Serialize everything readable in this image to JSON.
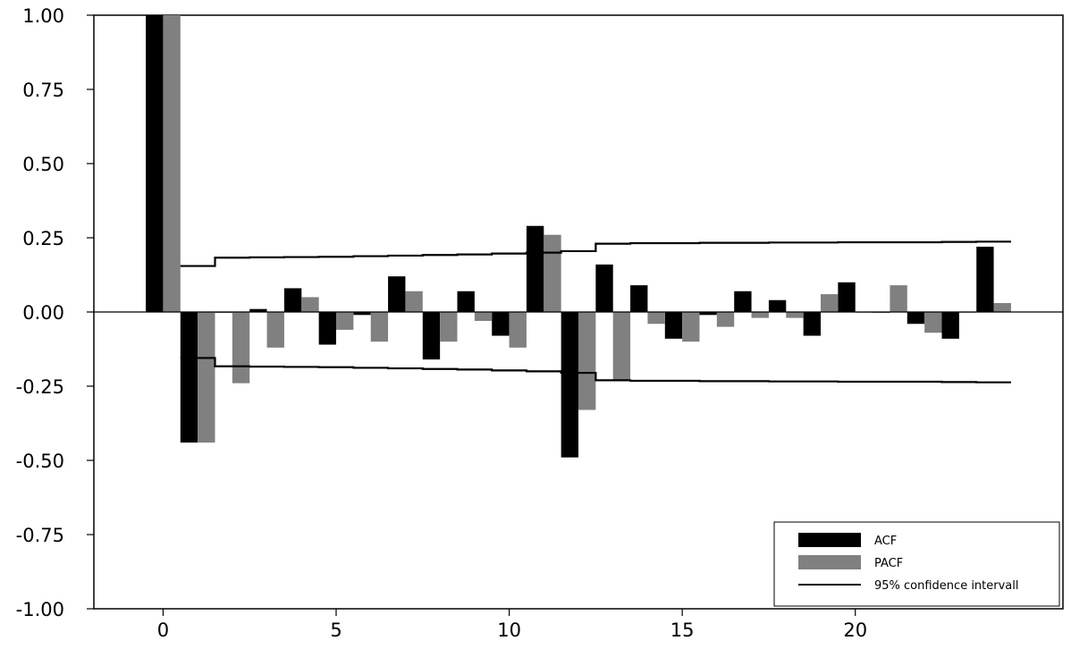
{
  "chart_data": {
    "type": "bar",
    "title": "",
    "xlabel": "",
    "ylabel": "",
    "ylim": [
      -1.0,
      1.0
    ],
    "xlim": [
      -2,
      26
    ],
    "y_ticks": [
      "1.00",
      "0.75",
      "0.50",
      "0.25",
      "0.00",
      "-0.25",
      "-0.50",
      "-0.75",
      "-1.00"
    ],
    "y_tick_values": [
      1.0,
      0.75,
      0.5,
      0.25,
      0.0,
      -0.25,
      -0.5,
      -0.75,
      -1.0
    ],
    "x_ticks": [
      "0",
      "5",
      "10",
      "15",
      "20"
    ],
    "x_tick_values": [
      0,
      5,
      10,
      15,
      20
    ],
    "lags": [
      0,
      1,
      2,
      3,
      4,
      5,
      6,
      7,
      8,
      9,
      10,
      11,
      12,
      13,
      14,
      15,
      16,
      17,
      18,
      19,
      20,
      21,
      22,
      23,
      24
    ],
    "series": [
      {
        "name": "ACF",
        "color": "#000000",
        "values": [
          1.0,
          -0.44,
          0.0,
          0.01,
          0.08,
          -0.11,
          -0.01,
          0.12,
          -0.16,
          0.07,
          -0.08,
          0.29,
          -0.49,
          0.16,
          0.09,
          -0.09,
          -0.01,
          0.07,
          0.04,
          -0.08,
          0.1,
          0.0,
          -0.04,
          -0.09,
          0.22
        ]
      },
      {
        "name": "PACF",
        "color": "#808080",
        "values": [
          1.0,
          -0.44,
          -0.24,
          -0.12,
          0.05,
          -0.06,
          -0.1,
          0.07,
          -0.1,
          -0.03,
          -0.12,
          0.26,
          -0.33,
          -0.23,
          -0.04,
          -0.1,
          -0.05,
          -0.02,
          -0.02,
          0.06,
          0.0,
          0.09,
          -0.07,
          0.0,
          0.03
        ]
      }
    ],
    "confidence_interval": {
      "name": "95% confidence intervall",
      "color": "#000000",
      "values": [
        0.155,
        0.183,
        0.184,
        0.185,
        0.186,
        0.188,
        0.19,
        0.192,
        0.194,
        0.197,
        0.2,
        0.205,
        0.23,
        0.232,
        0.232,
        0.233,
        0.233,
        0.234,
        0.234,
        0.235,
        0.235,
        0.235,
        0.236,
        0.237
      ]
    },
    "legend": {
      "position": "bottom-right",
      "items": [
        "ACF",
        "PACF",
        "95% confidence intervall"
      ]
    },
    "grid": false
  }
}
